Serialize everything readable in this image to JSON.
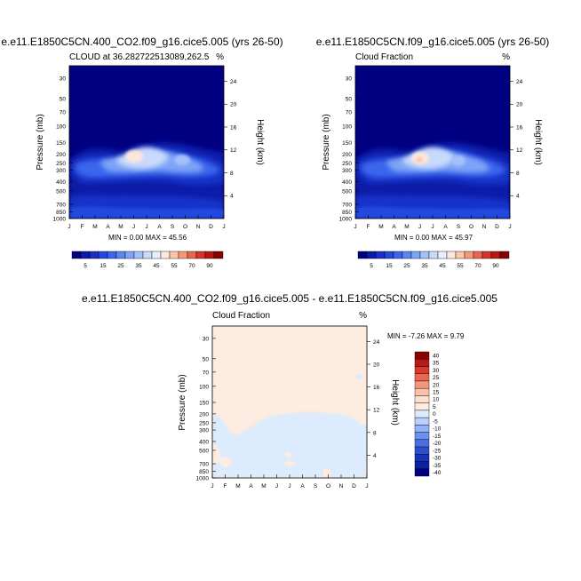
{
  "chart_data": [
    {
      "type": "heatmap",
      "id": "p1",
      "title": "e.e11.E1850C5CN.400_CO2.f09_g16.cice5.005 (yrs 26-50)",
      "left_label": "CLOUD at 36.282722513089,262.5",
      "right_label": "%",
      "xlabel": "",
      "ylabel": "Pressure (mb)",
      "ylabel_right": "Height (km)",
      "x_ticks": [
        "J",
        "F",
        "M",
        "A",
        "M",
        "J",
        "J",
        "A",
        "S",
        "O",
        "N",
        "D",
        "J"
      ],
      "pressure_ticks": [
        30,
        50,
        70,
        100,
        150,
        200,
        250,
        300,
        400,
        500,
        700,
        850,
        1000
      ],
      "height_ticks": [
        4,
        8,
        12,
        16,
        20,
        24
      ],
      "ylim_mb": [
        1000,
        22
      ],
      "minmax_text": "MIN =   0.00 MAX =  45.56",
      "min": 0.0,
      "max": 45.56,
      "colorbar_labels": [
        "5",
        "15",
        "25",
        "35",
        "45",
        "55",
        "70",
        "90"
      ]
    },
    {
      "type": "heatmap",
      "id": "p2",
      "title": "e.e11.E1850C5CN.f09_g16.cice5.005 (yrs 26-50)",
      "left_label": "Cloud Fraction",
      "right_label": "%",
      "xlabel": "",
      "ylabel": "Pressure (mb)",
      "ylabel_right": "Height (km)",
      "x_ticks": [
        "J",
        "F",
        "M",
        "A",
        "M",
        "J",
        "J",
        "A",
        "S",
        "O",
        "N",
        "D",
        "J"
      ],
      "pressure_ticks": [
        30,
        50,
        70,
        100,
        150,
        200,
        250,
        300,
        400,
        500,
        700,
        850,
        1000
      ],
      "height_ticks": [
        4,
        8,
        12,
        16,
        20,
        24
      ],
      "ylim_mb": [
        1000,
        22
      ],
      "minmax_text": "MIN =   0.00 MAX =  45.97",
      "min": 0.0,
      "max": 45.97,
      "colorbar_labels": [
        "5",
        "15",
        "25",
        "35",
        "45",
        "55",
        "70",
        "90"
      ]
    },
    {
      "type": "heatmap",
      "id": "p3",
      "title": "e.e11.E1850C5CN.400_CO2.f09_g16.cice5.005 - e.e11.E1850C5CN.f09_g16.cice5.005",
      "left_label": "Cloud Fraction",
      "right_label": "%",
      "xlabel": "",
      "ylabel": "Pressure (mb)",
      "ylabel_right": "Height (km)",
      "x_ticks": [
        "J",
        "F",
        "M",
        "A",
        "M",
        "J",
        "J",
        "A",
        "S",
        "O",
        "N",
        "D",
        "J"
      ],
      "pressure_ticks": [
        30,
        50,
        70,
        100,
        150,
        200,
        250,
        300,
        400,
        500,
        700,
        850,
        1000
      ],
      "height_ticks": [
        4,
        8,
        12,
        16,
        20,
        24
      ],
      "ylim_mb": [
        1000,
        22
      ],
      "minmax_text": "MIN =  -7.26 MAX =   9.79",
      "min": -7.26,
      "max": 9.79,
      "colorbar_labels": [
        "40",
        "35",
        "30",
        "25",
        "20",
        "15",
        "10",
        "5",
        "0",
        "-5",
        "-10",
        "-15",
        "-20",
        "-25",
        "-30",
        "-35",
        "-40"
      ]
    }
  ],
  "colors": {
    "cloud_scale": [
      "#000080",
      "#0a1aa8",
      "#1830c8",
      "#2448de",
      "#3a66ec",
      "#5a86f2",
      "#7ea4f6",
      "#a4c0f9",
      "#c9dafb",
      "#e8eefe",
      "#fde6da",
      "#fbc6ac",
      "#f5987a",
      "#ea6450",
      "#d63426",
      "#b81414",
      "#8b0000"
    ],
    "diff_scale": [
      "#8b0000",
      "#b81a1a",
      "#d83a2a",
      "#ec6650",
      "#f6957c",
      "#fac0a8",
      "#fde0d0",
      "#fdecdf",
      "#dcebfd",
      "#b8d0fb",
      "#94b2f7",
      "#6c90f0",
      "#4a6ee4",
      "#2c4fd2",
      "#1834bc",
      "#0c20a2",
      "#000080"
    ]
  }
}
